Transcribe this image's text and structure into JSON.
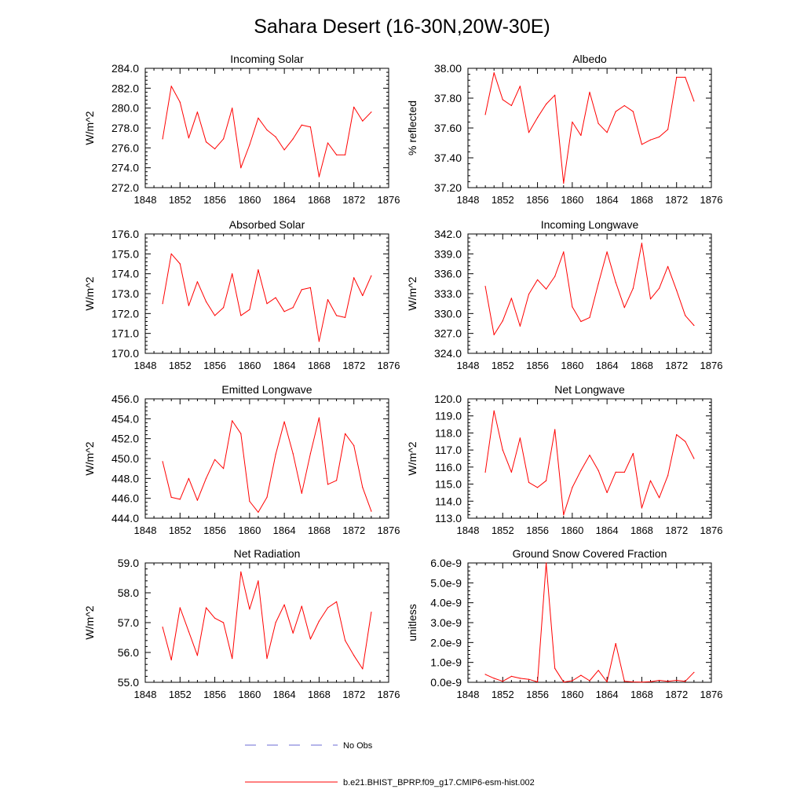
{
  "figure": {
    "title": "Sahara Desert (16-30N,20W-30E)",
    "line_color": "#ff0000",
    "obs_color": "#6b6bd6",
    "legend": [
      {
        "label": "No Obs",
        "style": "dashed",
        "color": "#6b6bd6"
      },
      {
        "label": "b.e21.BHIST_BPRP.f09_g17.CMIP6-esm-hist.002",
        "style": "solid",
        "color": "#ff0000"
      }
    ]
  },
  "chart_data": [
    {
      "type": "line",
      "title": "Incoming Solar",
      "ylabel": "W/m^2",
      "xlim": [
        1848,
        1876
      ],
      "xticks": [
        1848,
        1852,
        1856,
        1860,
        1864,
        1868,
        1872,
        1876
      ],
      "ylim": [
        272,
        284
      ],
      "yticks": [
        272,
        274,
        276,
        278,
        280,
        282,
        284
      ],
      "ytick_labels": [
        "272.0",
        "274.0",
        "276.0",
        "278.0",
        "280.0",
        "282.0",
        "284.0"
      ],
      "x": [
        1850,
        1851,
        1852,
        1853,
        1854,
        1855,
        1856,
        1857,
        1858,
        1859,
        1860,
        1861,
        1862,
        1863,
        1864,
        1865,
        1866,
        1867,
        1868,
        1869,
        1870,
        1871,
        1872,
        1873,
        1874
      ],
      "series": [
        {
          "name": "b.e21.BHIST_BPRP.f09_g17.CMIP6-esm-hist.002",
          "values": [
            276.9,
            282.2,
            280.6,
            277.0,
            279.6,
            276.6,
            275.9,
            276.9,
            280.0,
            274.0,
            276.3,
            279.0,
            277.8,
            277.1,
            275.8,
            276.9,
            278.3,
            278.1,
            273.1,
            276.5,
            275.3,
            275.3,
            280.1,
            278.7,
            279.6
          ]
        }
      ]
    },
    {
      "type": "line",
      "title": "Albedo",
      "ylabel": "% reflected",
      "xlim": [
        1848,
        1876
      ],
      "xticks": [
        1848,
        1852,
        1856,
        1860,
        1864,
        1868,
        1872,
        1876
      ],
      "ylim": [
        37.2,
        38.0
      ],
      "yticks": [
        37.2,
        37.4,
        37.6,
        37.8,
        38.0
      ],
      "ytick_labels": [
        "37.20",
        "37.40",
        "37.60",
        "37.80",
        "38.00"
      ],
      "x": [
        1850,
        1851,
        1852,
        1853,
        1854,
        1855,
        1856,
        1857,
        1858,
        1859,
        1860,
        1861,
        1862,
        1863,
        1864,
        1865,
        1866,
        1867,
        1868,
        1869,
        1870,
        1871,
        1872,
        1873,
        1874
      ],
      "series": [
        {
          "name": "b.e21.BHIST_BPRP.f09_g17.CMIP6-esm-hist.002",
          "values": [
            37.69,
            37.97,
            37.79,
            37.75,
            37.88,
            37.57,
            37.67,
            37.76,
            37.82,
            37.23,
            37.64,
            37.55,
            37.84,
            37.63,
            37.57,
            37.71,
            37.75,
            37.71,
            37.49,
            37.52,
            37.54,
            37.59,
            37.94,
            37.94,
            37.78
          ]
        }
      ]
    },
    {
      "type": "line",
      "title": "Absorbed Solar",
      "ylabel": "W/m^2",
      "xlim": [
        1848,
        1876
      ],
      "xticks": [
        1848,
        1852,
        1856,
        1860,
        1864,
        1868,
        1872,
        1876
      ],
      "ylim": [
        170,
        176
      ],
      "yticks": [
        170,
        171,
        172,
        173,
        174,
        175,
        176
      ],
      "ytick_labels": [
        "170.0",
        "171.0",
        "172.0",
        "173.0",
        "174.0",
        "175.0",
        "176.0"
      ],
      "x": [
        1850,
        1851,
        1852,
        1853,
        1854,
        1855,
        1856,
        1857,
        1858,
        1859,
        1860,
        1861,
        1862,
        1863,
        1864,
        1865,
        1866,
        1867,
        1868,
        1869,
        1870,
        1871,
        1872,
        1873,
        1874
      ],
      "series": [
        {
          "name": "b.e21.BHIST_BPRP.f09_g17.CMIP6-esm-hist.002",
          "values": [
            172.5,
            175.0,
            174.5,
            172.4,
            173.6,
            172.6,
            171.9,
            172.3,
            174.0,
            171.9,
            172.2,
            174.2,
            172.5,
            172.8,
            172.1,
            172.3,
            173.2,
            173.3,
            170.6,
            172.7,
            171.9,
            171.8,
            173.8,
            172.9,
            173.9
          ]
        }
      ]
    },
    {
      "type": "line",
      "title": "Incoming Longwave",
      "ylabel": "W/m^2",
      "xlim": [
        1848,
        1876
      ],
      "xticks": [
        1848,
        1852,
        1856,
        1860,
        1864,
        1868,
        1872,
        1876
      ],
      "ylim": [
        324,
        342
      ],
      "yticks": [
        324,
        327,
        330,
        333,
        336,
        339,
        342
      ],
      "ytick_labels": [
        "324.0",
        "327.0",
        "330.0",
        "333.0",
        "336.0",
        "339.0",
        "342.0"
      ],
      "x": [
        1850,
        1851,
        1852,
        1853,
        1854,
        1855,
        1856,
        1857,
        1858,
        1859,
        1860,
        1861,
        1862,
        1863,
        1864,
        1865,
        1866,
        1867,
        1868,
        1869,
        1870,
        1871,
        1872,
        1873,
        1874
      ],
      "series": [
        {
          "name": "b.e21.BHIST_BPRP.f09_g17.CMIP6-esm-hist.002",
          "values": [
            334.1,
            326.8,
            328.9,
            332.3,
            328.1,
            332.9,
            335.1,
            333.7,
            335.6,
            339.3,
            331.0,
            328.8,
            329.4,
            334.5,
            339.3,
            334.7,
            330.9,
            333.8,
            340.6,
            332.2,
            333.8,
            337.1,
            333.5,
            329.7,
            328.2
          ]
        }
      ]
    },
    {
      "type": "line",
      "title": "Emitted Longwave",
      "ylabel": "W/m^2",
      "xlim": [
        1848,
        1876
      ],
      "xticks": [
        1848,
        1852,
        1856,
        1860,
        1864,
        1868,
        1872,
        1876
      ],
      "ylim": [
        444,
        456
      ],
      "yticks": [
        444,
        446,
        448,
        450,
        452,
        454,
        456
      ],
      "ytick_labels": [
        "444.0",
        "446.0",
        "448.0",
        "450.0",
        "452.0",
        "454.0",
        "456.0"
      ],
      "x": [
        1850,
        1851,
        1852,
        1853,
        1854,
        1855,
        1856,
        1857,
        1858,
        1859,
        1860,
        1861,
        1862,
        1863,
        1864,
        1865,
        1866,
        1867,
        1868,
        1869,
        1870,
        1871,
        1872,
        1873,
        1874
      ],
      "series": [
        {
          "name": "b.e21.BHIST_BPRP.f09_g17.CMIP6-esm-hist.002",
          "values": [
            449.7,
            446.1,
            445.9,
            448.0,
            445.8,
            448.0,
            449.9,
            449.0,
            453.8,
            452.5,
            445.7,
            444.6,
            446.1,
            450.4,
            453.7,
            450.5,
            446.5,
            450.5,
            454.1,
            447.4,
            447.8,
            452.5,
            451.3,
            447.1,
            444.7
          ]
        }
      ]
    },
    {
      "type": "line",
      "title": "Net Longwave",
      "ylabel": "W/m^2",
      "xlim": [
        1848,
        1876
      ],
      "xticks": [
        1848,
        1852,
        1856,
        1860,
        1864,
        1868,
        1872,
        1876
      ],
      "ylim": [
        113,
        120
      ],
      "yticks": [
        113,
        114,
        115,
        116,
        117,
        118,
        119,
        120
      ],
      "ytick_labels": [
        "113.0",
        "114.0",
        "115.0",
        "116.0",
        "117.0",
        "118.0",
        "119.0",
        "120.0"
      ],
      "x": [
        1850,
        1851,
        1852,
        1853,
        1854,
        1855,
        1856,
        1857,
        1858,
        1859,
        1860,
        1861,
        1862,
        1863,
        1864,
        1865,
        1866,
        1867,
        1868,
        1869,
        1870,
        1871,
        1872,
        1873,
        1874
      ],
      "series": [
        {
          "name": "b.e21.BHIST_BPRP.f09_g17.CMIP6-esm-hist.002",
          "values": [
            115.7,
            119.3,
            117.0,
            115.7,
            117.7,
            115.1,
            114.8,
            115.2,
            118.2,
            113.2,
            114.8,
            115.8,
            116.7,
            115.8,
            114.5,
            115.7,
            115.7,
            116.8,
            113.6,
            115.2,
            114.2,
            115.5,
            117.9,
            117.5,
            116.5
          ]
        }
      ]
    },
    {
      "type": "line",
      "title": "Net Radiation",
      "ylabel": "W/m^2",
      "xlim": [
        1848,
        1876
      ],
      "xticks": [
        1848,
        1852,
        1856,
        1860,
        1864,
        1868,
        1872,
        1876
      ],
      "ylim": [
        55,
        59
      ],
      "yticks": [
        55,
        56,
        57,
        58,
        59
      ],
      "ytick_labels": [
        "55.0",
        "56.0",
        "57.0",
        "58.0",
        "59.0"
      ],
      "x": [
        1850,
        1851,
        1852,
        1853,
        1854,
        1855,
        1856,
        1857,
        1858,
        1859,
        1860,
        1861,
        1862,
        1863,
        1864,
        1865,
        1866,
        1867,
        1868,
        1869,
        1870,
        1871,
        1872,
        1873,
        1874
      ],
      "series": [
        {
          "name": "b.e21.BHIST_BPRP.f09_g17.CMIP6-esm-hist.002",
          "values": [
            56.85,
            55.75,
            57.5,
            56.7,
            55.9,
            57.5,
            57.15,
            57.0,
            55.8,
            58.7,
            57.45,
            58.4,
            55.8,
            57.0,
            57.6,
            56.65,
            57.55,
            56.45,
            57.05,
            57.5,
            57.7,
            56.4,
            55.9,
            55.45,
            57.35
          ]
        }
      ]
    },
    {
      "type": "line",
      "title": "Ground Snow Covered Fraction",
      "ylabel": "unitless",
      "xlim": [
        1848,
        1876
      ],
      "xticks": [
        1848,
        1852,
        1856,
        1860,
        1864,
        1868,
        1872,
        1876
      ],
      "ylim": [
        0,
        6e-09
      ],
      "yticks": [
        0,
        1e-09,
        2e-09,
        3e-09,
        4e-09,
        5e-09,
        6e-09
      ],
      "ytick_labels": [
        "0.0e-9",
        "1.0e-9",
        "2.0e-9",
        "3.0e-9",
        "4.0e-9",
        "5.0e-9",
        "6.0e-9"
      ],
      "x": [
        1850,
        1851,
        1852,
        1853,
        1854,
        1855,
        1856,
        1857,
        1858,
        1859,
        1860,
        1861,
        1862,
        1863,
        1864,
        1865,
        1866,
        1867,
        1868,
        1869,
        1870,
        1871,
        1872,
        1873,
        1874
      ],
      "series": [
        {
          "name": "b.e21.BHIST_BPRP.f09_g17.CMIP6-esm-hist.002",
          "values": [
            4e-10,
            2e-10,
            5e-11,
            3e-10,
            2e-10,
            1.5e-10,
            2e-11,
            6e-09,
            7e-10,
            1e-11,
            8e-11,
            3.5e-10,
            8e-11,
            6e-10,
            2e-11,
            1.95e-09,
            5e-11,
            2e-11,
            1e-11,
            3e-11,
            1e-10,
            5e-11,
            1e-10,
            5e-11,
            5e-10
          ]
        }
      ]
    }
  ]
}
